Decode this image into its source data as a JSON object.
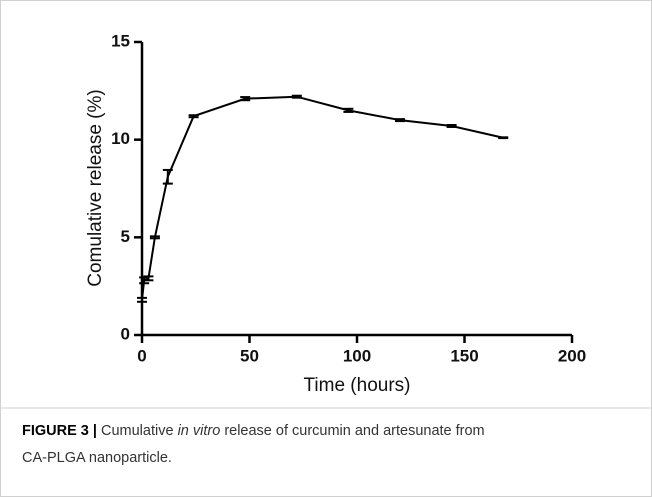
{
  "chart_data": {
    "type": "line",
    "xlabel": "Time (hours)",
    "ylabel": "Comulative release (%)",
    "x": [
      0,
      1,
      3,
      6,
      12,
      24,
      48,
      72,
      96,
      120,
      144,
      168
    ],
    "series": [
      {
        "color": "#000000",
        "values": [
          1.8,
          2.8,
          2.9,
          5.0,
          8.1,
          11.2,
          12.1,
          12.2,
          11.5,
          11.0,
          10.7,
          10.1
        ],
        "errors": [
          0.1,
          0.15,
          0.1,
          0.05,
          0.35,
          0.05,
          0.08,
          0.05,
          0.08,
          0.05,
          0.05,
          0.02
        ]
      }
    ],
    "xlim": [
      0,
      200
    ],
    "xticks": [
      0,
      50,
      100,
      150,
      200
    ],
    "ylim": [
      0,
      15
    ],
    "yticks": [
      0,
      5,
      10,
      15
    ]
  },
  "caption": {
    "label": "FIGURE 3 |",
    "text1": "Cumulative",
    "italic": "in vitro",
    "text2": "release of curcumin and artesunate from",
    "text3": "CA-PLGA nanoparticle."
  }
}
